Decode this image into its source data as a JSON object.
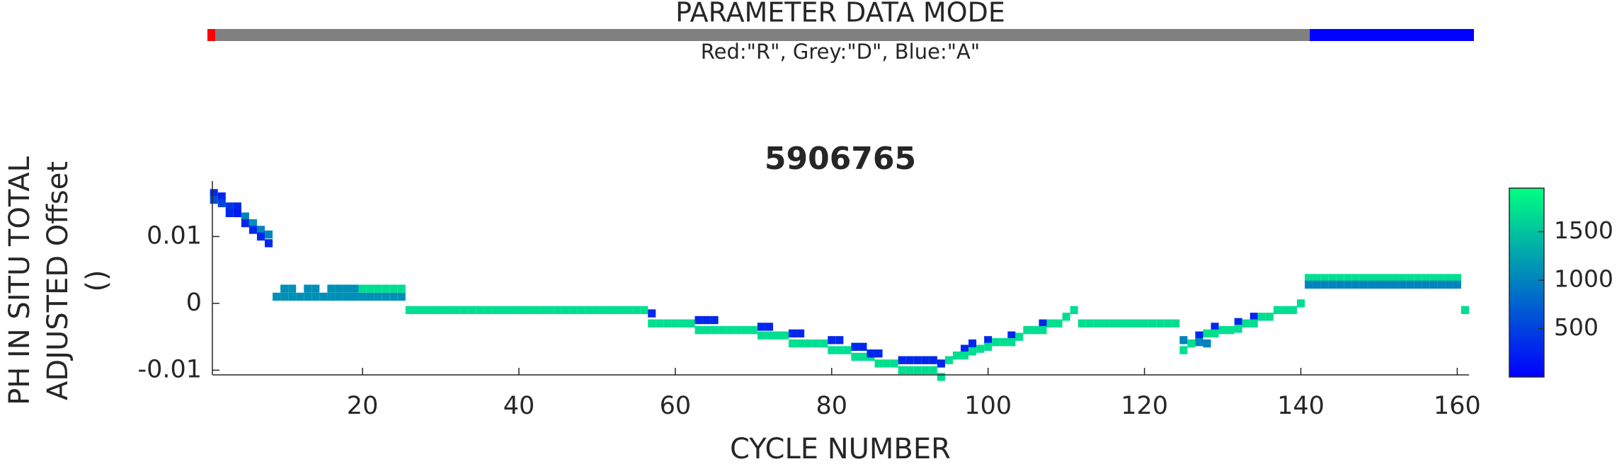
{
  "chart_data": [
    {
      "type": "mode-bar",
      "title": "PARAMETER DATA MODE",
      "subtitle": "Red:\"R\", Grey:\"D\", Blue:\"A\"",
      "xlim": [
        0,
        162
      ],
      "segments": [
        {
          "color": "#ff0000",
          "start": 0,
          "end": 1
        },
        {
          "color": "#808080",
          "start": 1,
          "end": 141
        },
        {
          "color": "#0000ff",
          "start": 141,
          "end": 162
        }
      ]
    },
    {
      "type": "scatter",
      "title": "5906765",
      "xlabel": "CYCLE NUMBER",
      "ylabel": [
        "PH IN SITU TOTAL",
        "ADJUSTED Offset",
        "()"
      ],
      "xlim": [
        0.8,
        161.5
      ],
      "xticks": [
        20,
        40,
        60,
        80,
        100,
        120,
        140,
        160
      ],
      "ylim": [
        -0.0107,
        0.0183
      ],
      "yticks": [
        -0.01,
        0,
        0.01
      ],
      "clim": [
        0,
        1950
      ],
      "cticks": [
        500,
        1000,
        1500
      ],
      "colormap": [
        "#0000ff",
        "#00ff80"
      ],
      "points": [
        [
          1,
          0.0165,
          300
        ],
        [
          1,
          0.0155,
          600
        ],
        [
          2,
          0.016,
          300
        ],
        [
          2,
          0.015,
          500
        ],
        [
          3,
          0.0145,
          400
        ],
        [
          3,
          0.0135,
          300
        ],
        [
          4,
          0.0145,
          300
        ],
        [
          4,
          0.0135,
          200
        ],
        [
          5,
          0.013,
          1000
        ],
        [
          5,
          0.012,
          300
        ],
        [
          6,
          0.012,
          1100
        ],
        [
          6,
          0.011,
          300
        ],
        [
          7,
          0.011,
          1000
        ],
        [
          7,
          0.01,
          300
        ],
        [
          8,
          0.0103,
          1000
        ],
        [
          8,
          0.009,
          300
        ],
        [
          9,
          0.001,
          1100
        ],
        [
          10,
          0.001,
          1100
        ],
        [
          11,
          0.001,
          1100
        ],
        [
          12,
          0.001,
          1100
        ],
        [
          13,
          0.001,
          1100
        ],
        [
          14,
          0.001,
          1100
        ],
        [
          15,
          0.001,
          1100
        ],
        [
          16,
          0.001,
          1100
        ],
        [
          17,
          0.001,
          1100
        ],
        [
          18,
          0.001,
          1100
        ],
        [
          19,
          0.001,
          1100
        ],
        [
          10,
          0.0022,
          1100
        ],
        [
          11,
          0.0022,
          1100
        ],
        [
          13,
          0.0022,
          1100
        ],
        [
          14,
          0.0022,
          1100
        ],
        [
          16,
          0.0022,
          1100
        ],
        [
          17,
          0.0022,
          1100
        ],
        [
          18,
          0.0022,
          1100
        ],
        [
          19,
          0.0022,
          1100
        ],
        [
          20,
          0.0022,
          1700
        ],
        [
          21,
          0.0022,
          1700
        ],
        [
          22,
          0.0022,
          1700
        ],
        [
          23,
          0.0022,
          1700
        ],
        [
          24,
          0.0022,
          1700
        ],
        [
          25,
          0.0022,
          1700
        ],
        [
          20,
          0.001,
          1100
        ],
        [
          21,
          0.001,
          1100
        ],
        [
          22,
          0.001,
          1100
        ],
        [
          23,
          0.001,
          1100
        ],
        [
          24,
          0.001,
          1100
        ],
        [
          25,
          0.001,
          1100
        ],
        [
          26,
          -0.001,
          1700
        ],
        [
          27,
          -0.001,
          1700
        ],
        [
          28,
          -0.001,
          1700
        ],
        [
          29,
          -0.001,
          1700
        ],
        [
          30,
          -0.001,
          1700
        ],
        [
          31,
          -0.001,
          1700
        ],
        [
          32,
          -0.001,
          1700
        ],
        [
          33,
          -0.001,
          1700
        ],
        [
          34,
          -0.001,
          1700
        ],
        [
          35,
          -0.001,
          1700
        ],
        [
          36,
          -0.001,
          1700
        ],
        [
          37,
          -0.001,
          1700
        ],
        [
          38,
          -0.001,
          1700
        ],
        [
          39,
          -0.001,
          1700
        ],
        [
          40,
          -0.001,
          1700
        ],
        [
          41,
          -0.001,
          1700
        ],
        [
          42,
          -0.001,
          1700
        ],
        [
          43,
          -0.001,
          1700
        ],
        [
          44,
          -0.001,
          1700
        ],
        [
          45,
          -0.001,
          1700
        ],
        [
          46,
          -0.001,
          1700
        ],
        [
          47,
          -0.001,
          1700
        ],
        [
          48,
          -0.001,
          1700
        ],
        [
          49,
          -0.001,
          1700
        ],
        [
          50,
          -0.001,
          1700
        ],
        [
          51,
          -0.001,
          1700
        ],
        [
          52,
          -0.001,
          1700
        ],
        [
          53,
          -0.001,
          1700
        ],
        [
          54,
          -0.001,
          1700
        ],
        [
          55,
          -0.001,
          1700
        ],
        [
          56,
          -0.001,
          1700
        ],
        [
          57,
          -0.0015,
          300
        ],
        [
          57,
          -0.003,
          1700
        ],
        [
          58,
          -0.003,
          1700
        ],
        [
          59,
          -0.003,
          1700
        ],
        [
          60,
          -0.003,
          1700
        ],
        [
          61,
          -0.003,
          1700
        ],
        [
          62,
          -0.003,
          1700
        ],
        [
          63,
          -0.0025,
          300
        ],
        [
          64,
          -0.0025,
          300
        ],
        [
          65,
          -0.0025,
          300
        ],
        [
          63,
          -0.004,
          1700
        ],
        [
          64,
          -0.004,
          1700
        ],
        [
          65,
          -0.004,
          1700
        ],
        [
          66,
          -0.004,
          1700
        ],
        [
          67,
          -0.004,
          1700
        ],
        [
          68,
          -0.004,
          1700
        ],
        [
          69,
          -0.004,
          1700
        ],
        [
          70,
          -0.004,
          1700
        ],
        [
          71,
          -0.0035,
          300
        ],
        [
          72,
          -0.0035,
          300
        ],
        [
          71,
          -0.0048,
          1700
        ],
        [
          72,
          -0.0048,
          1700
        ],
        [
          73,
          -0.0048,
          1700
        ],
        [
          74,
          -0.0048,
          1700
        ],
        [
          75,
          -0.0045,
          300
        ],
        [
          76,
          -0.0045,
          300
        ],
        [
          75,
          -0.006,
          1700
        ],
        [
          76,
          -0.006,
          1700
        ],
        [
          77,
          -0.006,
          1700
        ],
        [
          78,
          -0.006,
          1700
        ],
        [
          79,
          -0.006,
          1700
        ],
        [
          80,
          -0.0055,
          300
        ],
        [
          81,
          -0.0055,
          300
        ],
        [
          80,
          -0.007,
          1700
        ],
        [
          81,
          -0.007,
          1700
        ],
        [
          82,
          -0.007,
          1700
        ],
        [
          83,
          -0.0065,
          300
        ],
        [
          84,
          -0.0065,
          300
        ],
        [
          83,
          -0.008,
          1700
        ],
        [
          84,
          -0.008,
          1700
        ],
        [
          85,
          -0.008,
          1700
        ],
        [
          85,
          -0.0075,
          300
        ],
        [
          86,
          -0.0075,
          300
        ],
        [
          86,
          -0.009,
          1700
        ],
        [
          87,
          -0.009,
          1700
        ],
        [
          88,
          -0.009,
          1700
        ],
        [
          89,
          -0.0085,
          300
        ],
        [
          90,
          -0.0085,
          300
        ],
        [
          91,
          -0.0085,
          300
        ],
        [
          92,
          -0.0085,
          300
        ],
        [
          93,
          -0.0085,
          300
        ],
        [
          89,
          -0.01,
          1700
        ],
        [
          90,
          -0.01,
          1700
        ],
        [
          91,
          -0.01,
          1700
        ],
        [
          92,
          -0.01,
          1700
        ],
        [
          93,
          -0.01,
          1700
        ],
        [
          94,
          -0.009,
          300
        ],
        [
          94,
          -0.011,
          1700
        ],
        [
          95,
          -0.0085,
          1700
        ],
        [
          96,
          -0.0078,
          1700
        ],
        [
          97,
          -0.0068,
          300
        ],
        [
          97,
          -0.0078,
          1700
        ],
        [
          98,
          -0.006,
          300
        ],
        [
          98,
          -0.0072,
          1700
        ],
        [
          99,
          -0.0068,
          1700
        ],
        [
          100,
          -0.0055,
          300
        ],
        [
          100,
          -0.0065,
          1700
        ],
        [
          101,
          -0.0058,
          1700
        ],
        [
          102,
          -0.0058,
          1700
        ],
        [
          103,
          -0.0048,
          300
        ],
        [
          103,
          -0.0058,
          1700
        ],
        [
          104,
          -0.005,
          1700
        ],
        [
          105,
          -0.004,
          1700
        ],
        [
          106,
          -0.004,
          1700
        ],
        [
          107,
          -0.003,
          300
        ],
        [
          107,
          -0.004,
          1700
        ],
        [
          108,
          -0.003,
          1700
        ],
        [
          109,
          -0.003,
          1700
        ],
        [
          110,
          -0.002,
          1700
        ],
        [
          111,
          -0.001,
          1700
        ],
        [
          112,
          -0.003,
          1700
        ],
        [
          113,
          -0.003,
          1700
        ],
        [
          114,
          -0.003,
          1700
        ],
        [
          115,
          -0.003,
          1700
        ],
        [
          116,
          -0.003,
          1700
        ],
        [
          117,
          -0.003,
          1700
        ],
        [
          118,
          -0.003,
          1700
        ],
        [
          119,
          -0.003,
          1700
        ],
        [
          120,
          -0.003,
          1700
        ],
        [
          121,
          -0.003,
          1700
        ],
        [
          122,
          -0.003,
          1700
        ],
        [
          123,
          -0.003,
          1700
        ],
        [
          124,
          -0.003,
          1700
        ],
        [
          125,
          -0.0055,
          1000
        ],
        [
          125,
          -0.007,
          1700
        ],
        [
          126,
          -0.006,
          1700
        ],
        [
          127,
          -0.0048,
          300
        ],
        [
          127,
          -0.0058,
          1000
        ],
        [
          128,
          -0.0045,
          1700
        ],
        [
          128,
          -0.006,
          1000
        ],
        [
          129,
          -0.0035,
          300
        ],
        [
          129,
          -0.0045,
          1700
        ],
        [
          130,
          -0.004,
          1700
        ],
        [
          131,
          -0.004,
          1700
        ],
        [
          132,
          -0.0028,
          300
        ],
        [
          132,
          -0.0038,
          1700
        ],
        [
          133,
          -0.003,
          1700
        ],
        [
          134,
          -0.002,
          300
        ],
        [
          134,
          -0.003,
          1700
        ],
        [
          135,
          -0.002,
          1700
        ],
        [
          136,
          -0.002,
          1700
        ],
        [
          137,
          -0.001,
          1700
        ],
        [
          138,
          -0.001,
          1700
        ],
        [
          139,
          -0.001,
          1700
        ],
        [
          140,
          0,
          1700
        ],
        [
          141,
          0.0038,
          1700
        ],
        [
          142,
          0.0038,
          1700
        ],
        [
          143,
          0.0038,
          1700
        ],
        [
          144,
          0.0038,
          1700
        ],
        [
          145,
          0.0038,
          1700
        ],
        [
          146,
          0.0038,
          1700
        ],
        [
          147,
          0.0038,
          1700
        ],
        [
          148,
          0.0038,
          1700
        ],
        [
          149,
          0.0038,
          1700
        ],
        [
          150,
          0.0038,
          1700
        ],
        [
          151,
          0.0038,
          1700
        ],
        [
          152,
          0.0038,
          1700
        ],
        [
          153,
          0.0038,
          1700
        ],
        [
          154,
          0.0038,
          1700
        ],
        [
          155,
          0.0038,
          1700
        ],
        [
          156,
          0.0038,
          1700
        ],
        [
          157,
          0.0038,
          1700
        ],
        [
          158,
          0.0038,
          1700
        ],
        [
          159,
          0.0038,
          1700
        ],
        [
          160,
          0.0038,
          1700
        ],
        [
          141,
          0.0028,
          1000
        ],
        [
          142,
          0.0028,
          1000
        ],
        [
          143,
          0.0028,
          1000
        ],
        [
          144,
          0.0028,
          1000
        ],
        [
          145,
          0.0028,
          1000
        ],
        [
          146,
          0.0028,
          1000
        ],
        [
          147,
          0.0028,
          1000
        ],
        [
          148,
          0.0028,
          1000
        ],
        [
          149,
          0.0028,
          1000
        ],
        [
          150,
          0.0028,
          1000
        ],
        [
          151,
          0.0028,
          1000
        ],
        [
          152,
          0.0028,
          1000
        ],
        [
          153,
          0.0028,
          1000
        ],
        [
          154,
          0.0028,
          1000
        ],
        [
          155,
          0.0028,
          1000
        ],
        [
          156,
          0.0028,
          1000
        ],
        [
          157,
          0.0028,
          1000
        ],
        [
          158,
          0.0028,
          1000
        ],
        [
          159,
          0.0028,
          1000
        ],
        [
          160,
          0.0028,
          1000
        ],
        [
          161,
          -0.001,
          1700
        ]
      ]
    }
  ]
}
